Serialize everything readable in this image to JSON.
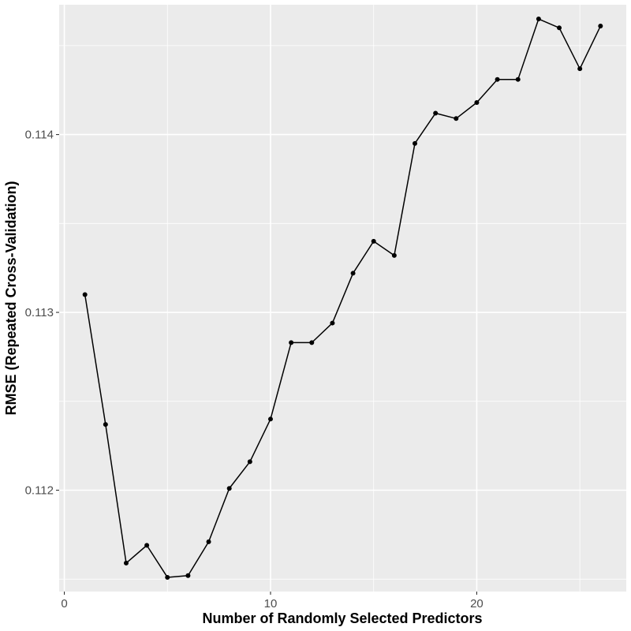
{
  "chart_data": {
    "type": "line",
    "title": "",
    "xlabel": "Number of Randomly Selected Predictors",
    "ylabel": "RMSE (Repeated Cross-Validation)",
    "xlim": [
      -0.25,
      27.25
    ],
    "ylim": [
      0.11143,
      0.11473
    ],
    "x_ticks": [
      0,
      10,
      20
    ],
    "x_tick_labels": [
      "0",
      "10",
      "20"
    ],
    "y_ticks": [
      0.112,
      0.113,
      0.114
    ],
    "y_tick_labels": [
      "0.112",
      "0.113",
      "0.114"
    ],
    "grid": true,
    "legend": "none",
    "colors": {
      "panel": "#ebebeb",
      "grid": "#ffffff",
      "series": "#000000",
      "tick_text": "#4d4d4d"
    },
    "series": [
      {
        "x": [
          1,
          2,
          3,
          4,
          5,
          6,
          7,
          8,
          9,
          10,
          11,
          12,
          13,
          14,
          15,
          16,
          17,
          18,
          19,
          20,
          21,
          22,
          23,
          24,
          25,
          26
        ],
        "y": [
          0.1131,
          0.11237,
          0.11159,
          0.11169,
          0.11151,
          0.11152,
          0.11171,
          0.11201,
          0.11216,
          0.1124,
          0.11283,
          0.11283,
          0.11294,
          0.11322,
          0.1134,
          0.11332,
          0.11395,
          0.11412,
          0.11409,
          0.11418,
          0.11431,
          0.11431,
          0.11465,
          0.1146,
          0.11437,
          0.11461
        ]
      }
    ]
  }
}
